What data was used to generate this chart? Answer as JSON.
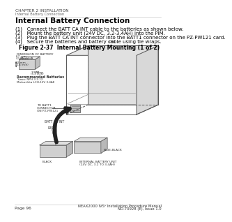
{
  "header_chapter": "CHAPTER 2 INSTALLATION",
  "header_sub": "Internal Battery Connection",
  "title_section": "Internal Battery Connection",
  "steps": [
    "(1)   Connect the BATT CA INT cable to the batteries as shown below.",
    "(2)   Mount the battery unit (24V DC, 3.2-3.4AH) into the PIM.",
    "(3)   Plug the BATT CA INT connector into the BATT1 connector on the PZ-PW121 card.",
    "(4)   Secure the batteries and battery cable using tie wraps."
  ],
  "figure_title": "Figure 2-37  Internal Battery Mounting (1 of 2)",
  "footer_left": "Page 96",
  "footer_right1": "NEAX2000 IVS² Installation Procedure Manual",
  "footer_right2": "ND-70928 (E), Issue 1.0",
  "bg_color": "#ffffff",
  "text_color": "#000000",
  "line_color": "#bbbbbb"
}
